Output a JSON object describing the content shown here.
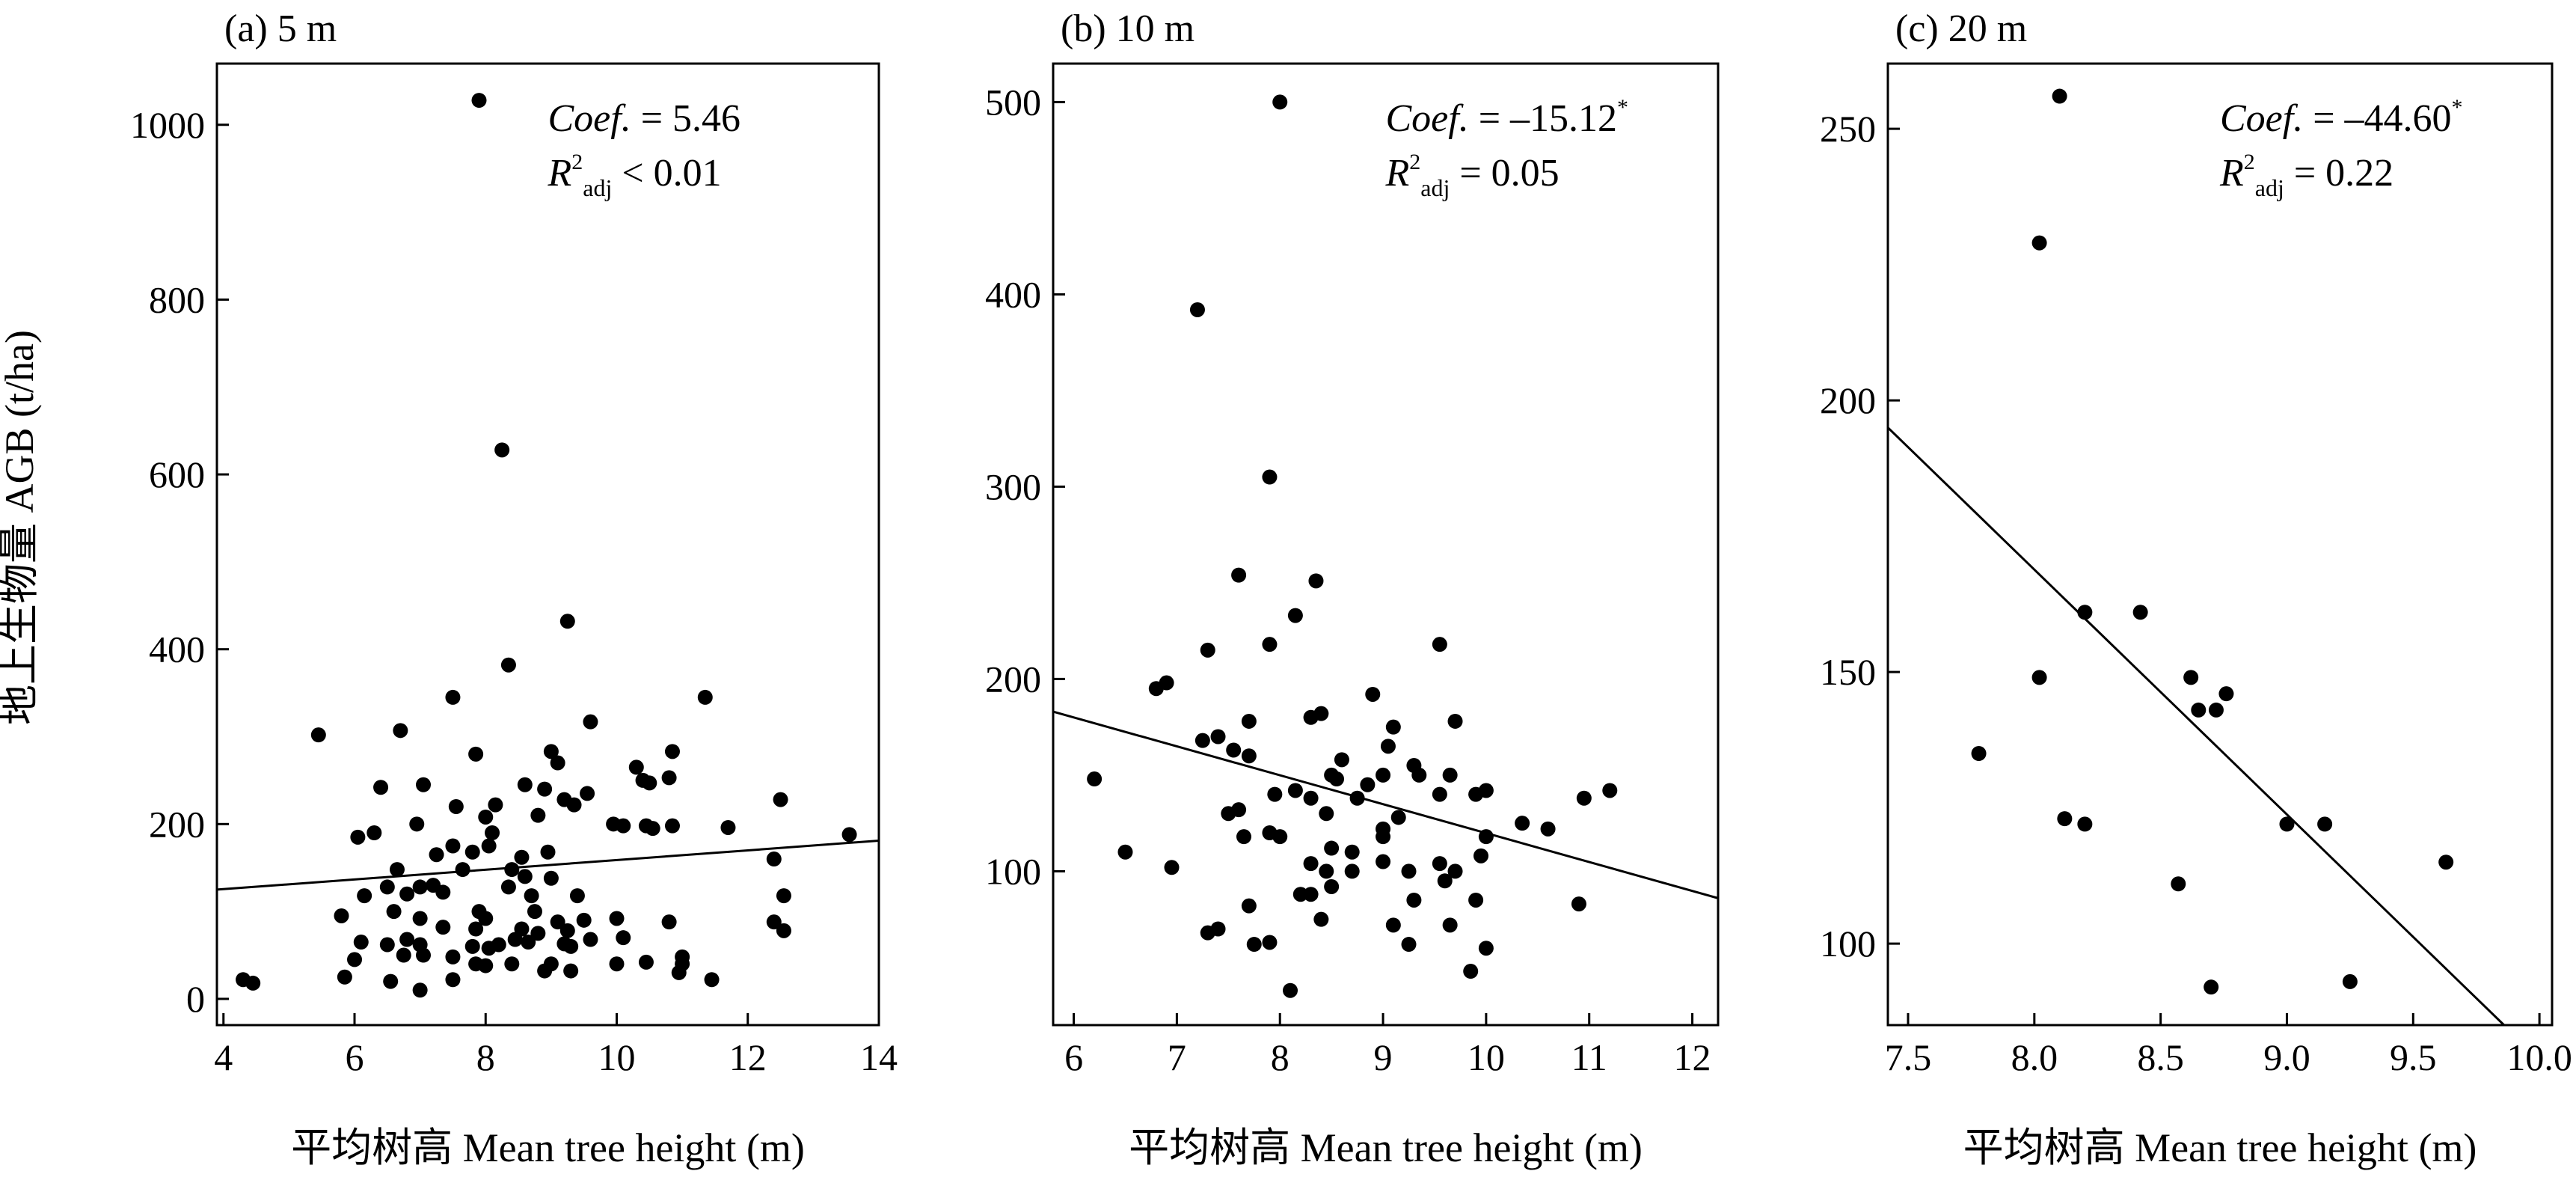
{
  "figure": {
    "ylabel": "地上生物量 AGB (t/ha)",
    "xlabel": "平均树高 Mean tree height (m)"
  },
  "chart_data": [
    {
      "type": "scatter",
      "panel_label": "(a) 5 m",
      "xlim": [
        3.9,
        14.0
      ],
      "ylim": [
        -30,
        1070
      ],
      "xticks": [
        4,
        6,
        8,
        10,
        12,
        14
      ],
      "yticks": [
        0,
        200,
        400,
        600,
        800,
        1000
      ],
      "annotation": {
        "coef_label": "Coef.",
        "coef_value": "= 5.46",
        "r2_label": "R",
        "r2_sup": "2",
        "r2_sub": "adj",
        "r2_value": "< 0.01"
      },
      "fit_line": {
        "x": [
          3.9,
          14.0
        ],
        "y": [
          125,
          181
        ]
      },
      "points": [
        [
          7.9,
          1028
        ],
        [
          8.25,
          628
        ],
        [
          9.25,
          432
        ],
        [
          8.35,
          382
        ],
        [
          7.5,
          345
        ],
        [
          11.35,
          345
        ],
        [
          9.6,
          317
        ],
        [
          6.7,
          307
        ],
        [
          5.45,
          302
        ],
        [
          9.0,
          283
        ],
        [
          10.85,
          283
        ],
        [
          7.85,
          280
        ],
        [
          9.1,
          270
        ],
        [
          10.3,
          265
        ],
        [
          12.5,
          228
        ],
        [
          10.5,
          247
        ],
        [
          10.4,
          250
        ],
        [
          10.8,
          253
        ],
        [
          6.4,
          242
        ],
        [
          7.05,
          245
        ],
        [
          8.6,
          245
        ],
        [
          8.9,
          240
        ],
        [
          9.55,
          235
        ],
        [
          6.3,
          190
        ],
        [
          6.05,
          185
        ],
        [
          6.95,
          200
        ],
        [
          8.1,
          190
        ],
        [
          8.0,
          208
        ],
        [
          8.15,
          222
        ],
        [
          7.55,
          220
        ],
        [
          9.2,
          228
        ],
        [
          9.35,
          222
        ],
        [
          8.8,
          210
        ],
        [
          9.95,
          200
        ],
        [
          10.1,
          198
        ],
        [
          10.45,
          198
        ],
        [
          10.55,
          195
        ],
        [
          10.85,
          198
        ],
        [
          11.7,
          196
        ],
        [
          13.55,
          188
        ],
        [
          8.05,
          175
        ],
        [
          8.95,
          168
        ],
        [
          8.55,
          162
        ],
        [
          7.5,
          175
        ],
        [
          7.25,
          165
        ],
        [
          7.8,
          168
        ],
        [
          6.65,
          148
        ],
        [
          7.65,
          148
        ],
        [
          8.4,
          148
        ],
        [
          8.6,
          140
        ],
        [
          9.0,
          138
        ],
        [
          7.0,
          128
        ],
        [
          7.2,
          130
        ],
        [
          6.5,
          128
        ],
        [
          7.35,
          122
        ],
        [
          6.8,
          120
        ],
        [
          8.35,
          128
        ],
        [
          8.7,
          118
        ],
        [
          9.4,
          118
        ],
        [
          12.4,
          160
        ],
        [
          12.55,
          118
        ],
        [
          6.15,
          118
        ],
        [
          5.8,
          95
        ],
        [
          6.6,
          100
        ],
        [
          7.0,
          92
        ],
        [
          7.9,
          100
        ],
        [
          8.0,
          92
        ],
        [
          8.75,
          100
        ],
        [
          9.1,
          88
        ],
        [
          9.5,
          90
        ],
        [
          10.0,
          92
        ],
        [
          10.8,
          88
        ],
        [
          12.4,
          88
        ],
        [
          7.35,
          82
        ],
        [
          7.85,
          80
        ],
        [
          8.55,
          80
        ],
        [
          8.8,
          75
        ],
        [
          9.25,
          78
        ],
        [
          9.6,
          68
        ],
        [
          10.1,
          70
        ],
        [
          12.55,
          78
        ],
        [
          6.1,
          65
        ],
        [
          6.5,
          62
        ],
        [
          6.8,
          68
        ],
        [
          7.0,
          62
        ],
        [
          7.8,
          60
        ],
        [
          8.05,
          58
        ],
        [
          8.2,
          62
        ],
        [
          8.45,
          68
        ],
        [
          8.65,
          65
        ],
        [
          9.2,
          63
        ],
        [
          9.3,
          60
        ],
        [
          6.75,
          50
        ],
        [
          7.05,
          50
        ],
        [
          7.5,
          48
        ],
        [
          6.0,
          45
        ],
        [
          7.85,
          40
        ],
        [
          8.0,
          38
        ],
        [
          8.4,
          40
        ],
        [
          9.0,
          40
        ],
        [
          10.0,
          40
        ],
        [
          10.45,
          42
        ],
        [
          11.0,
          40
        ],
        [
          10.95,
          30
        ],
        [
          11.0,
          48
        ],
        [
          11.45,
          22
        ],
        [
          5.85,
          25
        ],
        [
          6.55,
          20
        ],
        [
          7.0,
          10
        ],
        [
          4.3,
          22
        ],
        [
          4.45,
          18
        ],
        [
          7.5,
          22
        ],
        [
          8.9,
          32
        ],
        [
          9.3,
          32
        ]
      ]
    },
    {
      "type": "scatter",
      "panel_label": "(b) 10 m",
      "xlim": [
        5.8,
        12.25
      ],
      "ylim": [
        20,
        520
      ],
      "xticks": [
        6,
        7,
        8,
        9,
        10,
        11,
        12
      ],
      "yticks": [
        100,
        200,
        300,
        400,
        500
      ],
      "annotation": {
        "coef_label": "Coef.",
        "coef_value": "= –15.12",
        "coef_sup": "*",
        "r2_label": "R",
        "r2_sup": "2",
        "r2_sub": "adj",
        "r2_value": "= 0.05"
      },
      "fit_line": {
        "x": [
          5.8,
          12.25
        ],
        "y": [
          183,
          86
        ]
      },
      "points": [
        [
          8.0,
          500
        ],
        [
          7.2,
          392
        ],
        [
          7.9,
          305
        ],
        [
          7.6,
          254
        ],
        [
          8.35,
          251
        ],
        [
          8.15,
          233
        ],
        [
          9.55,
          218
        ],
        [
          7.3,
          215
        ],
        [
          7.9,
          218
        ],
        [
          6.9,
          198
        ],
        [
          6.8,
          195
        ],
        [
          8.9,
          192
        ],
        [
          7.7,
          178
        ],
        [
          8.3,
          180
        ],
        [
          8.4,
          182
        ],
        [
          9.1,
          175
        ],
        [
          9.7,
          178
        ],
        [
          7.4,
          170
        ],
        [
          7.25,
          168
        ],
        [
          7.55,
          163
        ],
        [
          7.7,
          160
        ],
        [
          8.6,
          158
        ],
        [
          9.05,
          165
        ],
        [
          9.3,
          155
        ],
        [
          9.0,
          150
        ],
        [
          9.35,
          150
        ],
        [
          9.65,
          150
        ],
        [
          6.2,
          148
        ],
        [
          8.5,
          150
        ],
        [
          8.55,
          148
        ],
        [
          8.85,
          145
        ],
        [
          8.15,
          142
        ],
        [
          7.95,
          140
        ],
        [
          8.3,
          138
        ],
        [
          8.75,
          138
        ],
        [
          9.55,
          140
        ],
        [
          9.9,
          140
        ],
        [
          10.0,
          142
        ],
        [
          10.95,
          138
        ],
        [
          11.2,
          142
        ],
        [
          10.35,
          125
        ],
        [
          10.6,
          122
        ],
        [
          7.6,
          132
        ],
        [
          7.5,
          130
        ],
        [
          8.45,
          130
        ],
        [
          9.15,
          128
        ],
        [
          9.0,
          122
        ],
        [
          9.0,
          118
        ],
        [
          7.9,
          120
        ],
        [
          8.0,
          118
        ],
        [
          7.65,
          118
        ],
        [
          8.5,
          112
        ],
        [
          8.7,
          110
        ],
        [
          9.0,
          105
        ],
        [
          9.55,
          104
        ],
        [
          9.95,
          108
        ],
        [
          10.0,
          118
        ],
        [
          6.5,
          110
        ],
        [
          6.95,
          102
        ],
        [
          8.3,
          104
        ],
        [
          8.45,
          100
        ],
        [
          8.7,
          100
        ],
        [
          9.25,
          100
        ],
        [
          9.7,
          100
        ],
        [
          9.6,
          95
        ],
        [
          8.2,
          88
        ],
        [
          8.3,
          88
        ],
        [
          8.5,
          92
        ],
        [
          9.3,
          85
        ],
        [
          9.9,
          85
        ],
        [
          10.9,
          83
        ],
        [
          7.7,
          82
        ],
        [
          8.4,
          75
        ],
        [
          9.1,
          72
        ],
        [
          9.65,
          72
        ],
        [
          7.3,
          68
        ],
        [
          7.4,
          70
        ],
        [
          7.75,
          62
        ],
        [
          7.9,
          63
        ],
        [
          9.25,
          62
        ],
        [
          10.0,
          60
        ],
        [
          9.85,
          48
        ],
        [
          8.1,
          38
        ]
      ]
    },
    {
      "type": "scatter",
      "panel_label": "(c) 20 m",
      "xlim": [
        7.42,
        10.05
      ],
      "ylim": [
        85,
        262
      ],
      "xticks": [
        7.5,
        8.0,
        8.5,
        9.0,
        9.5,
        10.0
      ],
      "yticks": [
        100,
        150,
        200,
        250
      ],
      "annotation": {
        "coef_label": "Coef.",
        "coef_value": "= –44.60",
        "coef_sup": "*",
        "r2_label": "R",
        "r2_sup": "2",
        "r2_sub": "adj",
        "r2_value": "= 0.22"
      },
      "fit_line": {
        "x": [
          7.42,
          9.86
        ],
        "y": [
          195,
          85
        ]
      },
      "points": [
        [
          8.1,
          256
        ],
        [
          8.02,
          229
        ],
        [
          8.2,
          161
        ],
        [
          8.42,
          161
        ],
        [
          8.02,
          149
        ],
        [
          8.62,
          149
        ],
        [
          8.65,
          143
        ],
        [
          8.72,
          143
        ],
        [
          8.76,
          146
        ],
        [
          7.78,
          135
        ],
        [
          8.12,
          123
        ],
        [
          8.2,
          122
        ],
        [
          9.0,
          122
        ],
        [
          9.15,
          122
        ],
        [
          9.63,
          115
        ],
        [
          8.57,
          111
        ],
        [
          8.7,
          92
        ],
        [
          9.25,
          93
        ]
      ]
    }
  ]
}
